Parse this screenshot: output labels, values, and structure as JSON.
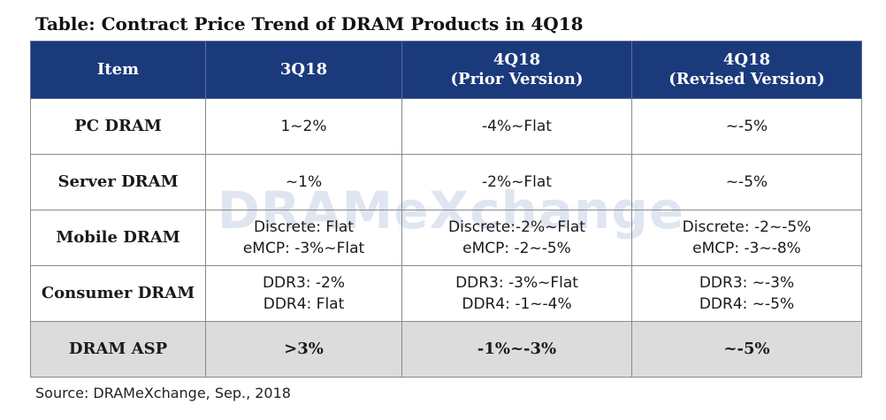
{
  "title": "Table: Contract Price Trend of DRAM Products in 4Q18",
  "columns": {
    "item": "Item",
    "q3": "3Q18",
    "prior_line1": "4Q18",
    "prior_line2": "(Prior Version)",
    "revised_line1": "4Q18",
    "revised_line2": "(Revised Version)"
  },
  "rows": [
    {
      "item": "PC DRAM",
      "q3": [
        "1~2%"
      ],
      "prior": [
        "-4%~Flat"
      ],
      "revised": [
        "~-5%"
      ]
    },
    {
      "item": "Server DRAM",
      "q3": [
        "~1%"
      ],
      "prior": [
        "-2%~Flat"
      ],
      "revised": [
        "~-5%"
      ]
    },
    {
      "item": "Mobile DRAM",
      "q3": [
        "Discrete: Flat",
        "eMCP: -3%~Flat"
      ],
      "prior": [
        "Discrete:-2%~Flat",
        "eMCP: -2~-5%"
      ],
      "revised": [
        "Discrete: -2~-5%",
        "eMCP: -3~-8%"
      ]
    },
    {
      "item": "Consumer DRAM",
      "q3": [
        "DDR3: -2%",
        "DDR4: Flat"
      ],
      "prior": [
        "DDR3: -3%~Flat",
        "DDR4: -1~-4%"
      ],
      "revised": [
        "DDR3: ~-3%",
        "DDR4: ~-5%"
      ]
    },
    {
      "item": "DRAM ASP",
      "q3": [
        ">3%"
      ],
      "prior": [
        "-1%~-3%"
      ],
      "revised": [
        "~-5%"
      ]
    }
  ],
  "watermark": "DRAMeXchange",
  "source": "Source: DRAMeXchange, Sep., 2018",
  "colors": {
    "header_bg": "#1b3a7c",
    "header_text": "#ffffff",
    "asp_row_bg": "#dcdcdc",
    "border": "#8a8a8a"
  }
}
